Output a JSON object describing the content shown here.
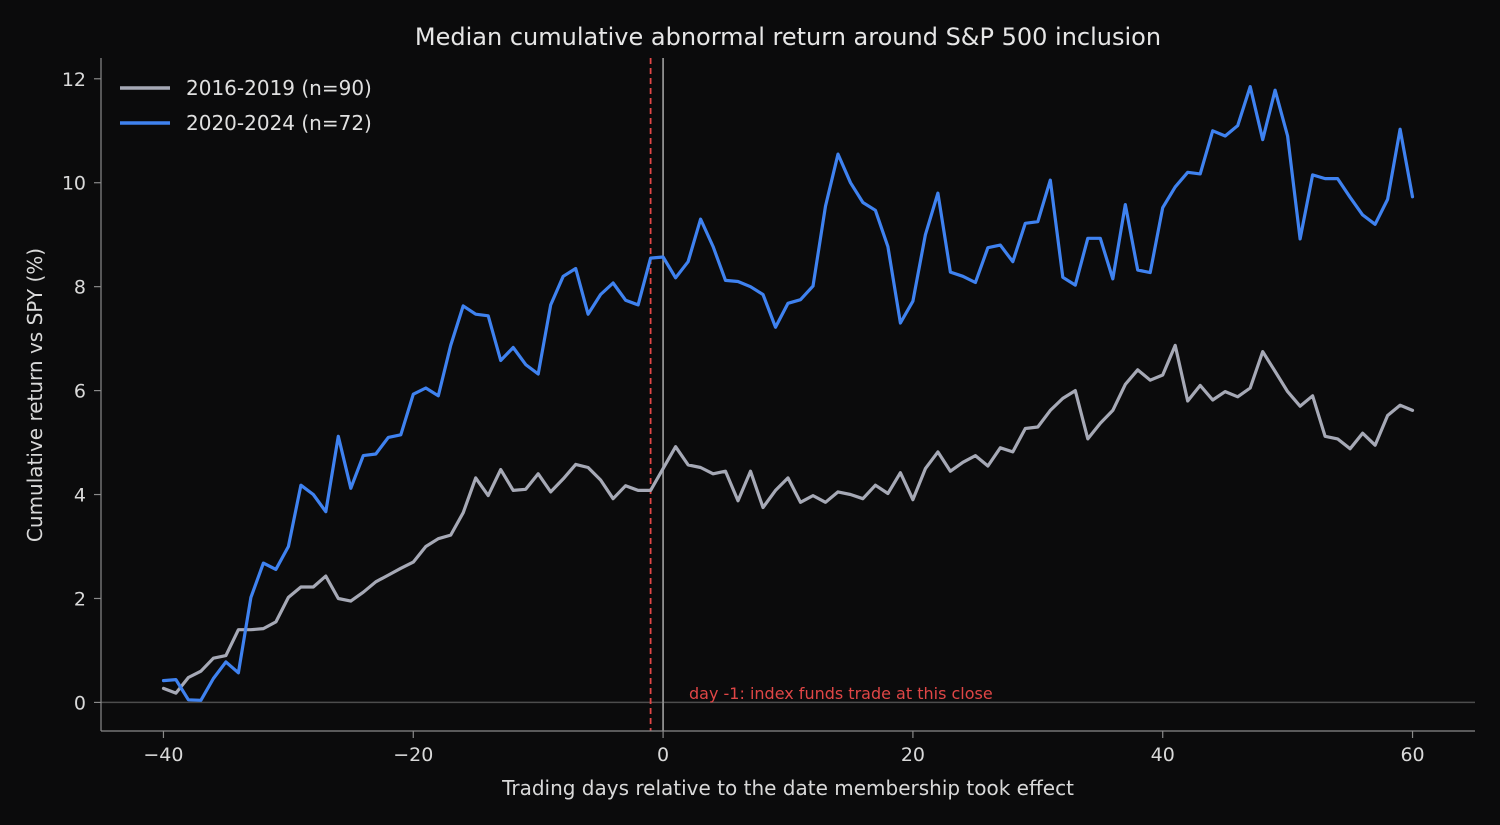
{
  "chart_data": {
    "type": "line",
    "title": "Median cumulative abnormal return around S&P 500 inclusion",
    "xlabel": "Trading days relative to the date membership took effect",
    "ylabel": "Cumulative return vs SPY (%)",
    "xlim": [
      -45,
      65
    ],
    "ylim": [
      -0.55,
      12.4
    ],
    "xticks": [
      -40,
      -20,
      0,
      20,
      40,
      60
    ],
    "xtick_labels": [
      "−40",
      "−20",
      "0",
      "20",
      "40",
      "60"
    ],
    "yticks": [
      0,
      2,
      4,
      6,
      8,
      10,
      12
    ],
    "ytick_labels": [
      "0",
      "2",
      "4",
      "6",
      "8",
      "10",
      "12"
    ],
    "grid": false,
    "legend_position": "top-left",
    "reference_lines": {
      "zero_y": 0,
      "effective_day_x": 0,
      "trade_day_x": -1
    },
    "annotation": {
      "text": "day -1: index funds trade at this close",
      "x": 2,
      "y": 0.2,
      "color": "#e04646"
    },
    "colors": {
      "background": "#0b0b0c",
      "axis": "#8a8a8a",
      "effective_line": "#8f8f8f",
      "trade_line": "#e04646",
      "zero_line": "#4d4d4d"
    },
    "x": [
      -40,
      -39,
      -38,
      -37,
      -36,
      -35,
      -34,
      -33,
      -32,
      -31,
      -30,
      -29,
      -28,
      -27,
      -26,
      -25,
      -24,
      -23,
      -22,
      -21,
      -20,
      -19,
      -18,
      -17,
      -16,
      -15,
      -14,
      -13,
      -12,
      -11,
      -10,
      -9,
      -8,
      -7,
      -6,
      -5,
      -4,
      -3,
      -2,
      -1,
      0,
      1,
      2,
      3,
      4,
      5,
      6,
      7,
      8,
      9,
      10,
      11,
      12,
      13,
      14,
      15,
      16,
      17,
      18,
      19,
      20,
      21,
      22,
      23,
      24,
      25,
      26,
      27,
      28,
      29,
      30,
      31,
      32,
      33,
      34,
      35,
      36,
      37,
      38,
      39,
      40,
      41,
      42,
      43,
      44,
      45,
      46,
      47,
      48,
      49,
      50,
      51,
      52,
      53,
      54,
      55,
      56,
      57,
      58,
      59,
      60
    ],
    "series": [
      {
        "name": "2016-2019 (n=90)",
        "color": "#a6a9b6",
        "values": [
          0.27,
          0.18,
          0.48,
          0.6,
          0.85,
          0.9,
          1.4,
          1.4,
          1.42,
          1.55,
          2.02,
          2.22,
          2.22,
          2.43,
          2.0,
          1.95,
          2.12,
          2.32,
          2.45,
          2.58,
          2.7,
          3.0,
          3.15,
          3.22,
          3.65,
          4.32,
          3.98,
          4.48,
          4.08,
          4.1,
          4.4,
          4.05,
          4.3,
          4.58,
          4.52,
          4.28,
          3.92,
          4.17,
          4.08,
          4.08,
          4.5,
          4.92,
          4.57,
          4.52,
          4.4,
          4.45,
          3.88,
          4.45,
          3.75,
          4.08,
          4.32,
          3.85,
          3.98,
          3.85,
          4.05,
          4.0,
          3.92,
          4.18,
          4.02,
          4.42,
          3.9,
          4.5,
          4.82,
          4.45,
          4.62,
          4.75,
          4.55,
          4.9,
          4.82,
          5.27,
          5.3,
          5.62,
          5.85,
          6.0,
          5.07,
          5.37,
          5.62,
          6.12,
          6.4,
          6.2,
          6.3,
          6.87,
          5.8,
          6.1,
          5.82,
          5.98,
          5.88,
          6.05,
          6.75,
          6.37,
          5.98,
          5.7,
          5.9,
          5.12,
          5.07,
          4.88,
          5.18,
          4.95,
          5.52,
          5.72,
          5.62
        ]
      },
      {
        "name": "2020-2024 (n=72)",
        "color": "#3f82f0",
        "values": [
          0.42,
          0.44,
          0.05,
          0.04,
          0.46,
          0.78,
          0.57,
          2.02,
          2.68,
          2.56,
          3.0,
          4.18,
          4.0,
          3.67,
          5.12,
          4.12,
          4.75,
          4.78,
          5.1,
          5.15,
          5.93,
          6.05,
          5.9,
          6.87,
          7.63,
          7.47,
          7.44,
          6.58,
          6.83,
          6.5,
          6.32,
          7.65,
          8.2,
          8.35,
          7.47,
          7.85,
          8.07,
          7.74,
          7.65,
          8.55,
          8.57,
          8.17,
          8.48,
          9.3,
          8.77,
          8.12,
          8.1,
          8.0,
          7.85,
          7.22,
          7.68,
          7.75,
          8.01,
          9.55,
          10.55,
          10.0,
          9.62,
          9.47,
          8.77,
          7.3,
          7.72,
          9.0,
          9.8,
          8.28,
          8.2,
          8.08,
          8.75,
          8.8,
          8.48,
          9.22,
          9.25,
          10.05,
          8.18,
          8.03,
          8.93,
          8.93,
          8.15,
          9.58,
          8.32,
          8.27,
          9.52,
          9.92,
          10.2,
          10.17,
          11.0,
          10.9,
          11.1,
          11.85,
          10.83,
          11.78,
          10.9,
          8.92,
          10.15,
          10.08,
          10.08,
          9.72,
          9.38,
          9.2,
          9.68,
          11.03,
          9.73
        ]
      }
    ]
  }
}
